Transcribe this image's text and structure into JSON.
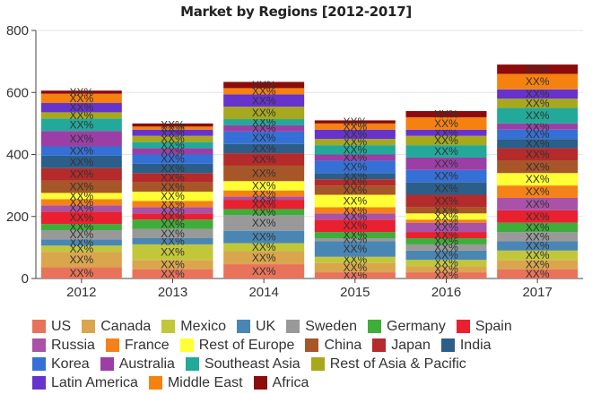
{
  "chart_data": {
    "type": "bar",
    "title": "Market by Regions [2012-2017]",
    "categories": [
      "2012",
      "2013",
      "2014",
      "2015",
      "2016",
      "2017"
    ],
    "ylim": [
      0,
      800
    ],
    "yticks": [
      "0",
      "200",
      "400",
      "600",
      "800"
    ],
    "grid": true,
    "legend_position": "bottom",
    "label_text": "XX%",
    "series": [
      {
        "name": "US",
        "color": "#e8735a",
        "values": [
          36,
          30,
          46,
          20,
          20,
          30
        ]
      },
      {
        "name": "Canada",
        "color": "#d9a64e",
        "values": [
          50,
          30,
          42,
          30,
          20,
          30
        ]
      },
      {
        "name": "Mexico",
        "color": "#c2c73a",
        "values": [
          20,
          50,
          26,
          20,
          20,
          30
        ]
      },
      {
        "name": "UK",
        "color": "#4a86b4",
        "values": [
          20,
          20,
          40,
          50,
          30,
          30
        ]
      },
      {
        "name": "Sweden",
        "color": "#999999",
        "values": [
          30,
          30,
          50,
          10,
          20,
          30
        ]
      },
      {
        "name": "Germany",
        "color": "#3fad3a",
        "values": [
          20,
          30,
          20,
          20,
          20,
          30
        ]
      },
      {
        "name": "Spain",
        "color": "#e8202f",
        "values": [
          40,
          20,
          30,
          40,
          20,
          40
        ]
      },
      {
        "name": "Russia",
        "color": "#a852a8",
        "values": [
          20,
          20,
          10,
          20,
          30,
          40
        ]
      },
      {
        "name": "France",
        "color": "#f58218",
        "values": [
          20,
          20,
          20,
          20,
          10,
          40
        ]
      },
      {
        "name": "Rest of Europe",
        "color": "#ffff33",
        "values": [
          20,
          30,
          30,
          40,
          20,
          40
        ]
      },
      {
        "name": "China",
        "color": "#a65628",
        "values": [
          40,
          30,
          50,
          30,
          20,
          40
        ]
      },
      {
        "name": "Japan",
        "color": "#b52a2a",
        "values": [
          40,
          30,
          40,
          20,
          40,
          40
        ]
      },
      {
        "name": "India",
        "color": "#2b5f8a",
        "values": [
          40,
          30,
          30,
          20,
          40,
          30
        ]
      },
      {
        "name": "Korea",
        "color": "#3570d6",
        "values": [
          30,
          30,
          40,
          40,
          40,
          30
        ]
      },
      {
        "name": "Australia",
        "color": "#9b3fa6",
        "values": [
          50,
          20,
          20,
          20,
          40,
          20
        ]
      },
      {
        "name": "Southeast Asia",
        "color": "#22a99a",
        "values": [
          40,
          20,
          20,
          30,
          40,
          50
        ]
      },
      {
        "name": "Rest of Asia & Pacific",
        "color": "#a8a81c",
        "values": [
          20,
          20,
          40,
          20,
          30,
          30
        ]
      },
      {
        "name": "Latin America",
        "color": "#6633cc",
        "values": [
          30,
          20,
          40,
          30,
          20,
          30
        ]
      },
      {
        "name": "Middle East",
        "color": "#f5820f",
        "values": [
          30,
          10,
          20,
          20,
          40,
          50
        ]
      },
      {
        "name": "Africa",
        "color": "#8c0b0b",
        "values": [
          10,
          10,
          20,
          10,
          20,
          30
        ]
      }
    ]
  }
}
